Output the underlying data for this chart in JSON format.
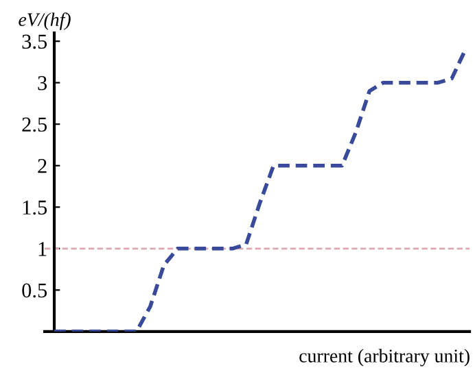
{
  "chart_data": {
    "type": "line",
    "ylabel": "eV/(hf)",
    "xlabel": "current (arbitrary unit)",
    "categories": [
      null,
      null,
      null,
      null,
      null,
      null,
      null,
      null,
      null,
      null,
      null,
      null,
      null,
      null,
      null,
      null,
      null,
      null,
      null,
      null,
      null,
      null,
      null,
      null,
      null,
      null,
      null,
      null,
      null,
      null,
      null
    ],
    "series": [
      {
        "color": "#3a4a9a",
        "values": [
          0,
          0,
          0,
          0,
          0,
          0,
          0,
          0.3,
          0.8,
          1,
          1,
          1,
          1,
          1,
          1.05,
          1.55,
          2,
          2,
          2,
          2,
          2,
          2,
          2.4,
          2.9,
          3,
          3,
          3,
          3,
          3,
          3.05,
          3.4
        ]
      }
    ],
    "line_style": "dashed",
    "marker": "none",
    "grid": false,
    "legend": false,
    "tick_labels": "y",
    "ylim": [
      0,
      3.6
    ],
    "yticks": [
      0.5,
      1,
      1.5,
      2,
      2.5,
      3,
      3.5
    ],
    "ref_lines": [
      {
        "axis": "y",
        "value": 1,
        "color": "#dba8b0",
        "line_style": "dashed"
      }
    ]
  }
}
